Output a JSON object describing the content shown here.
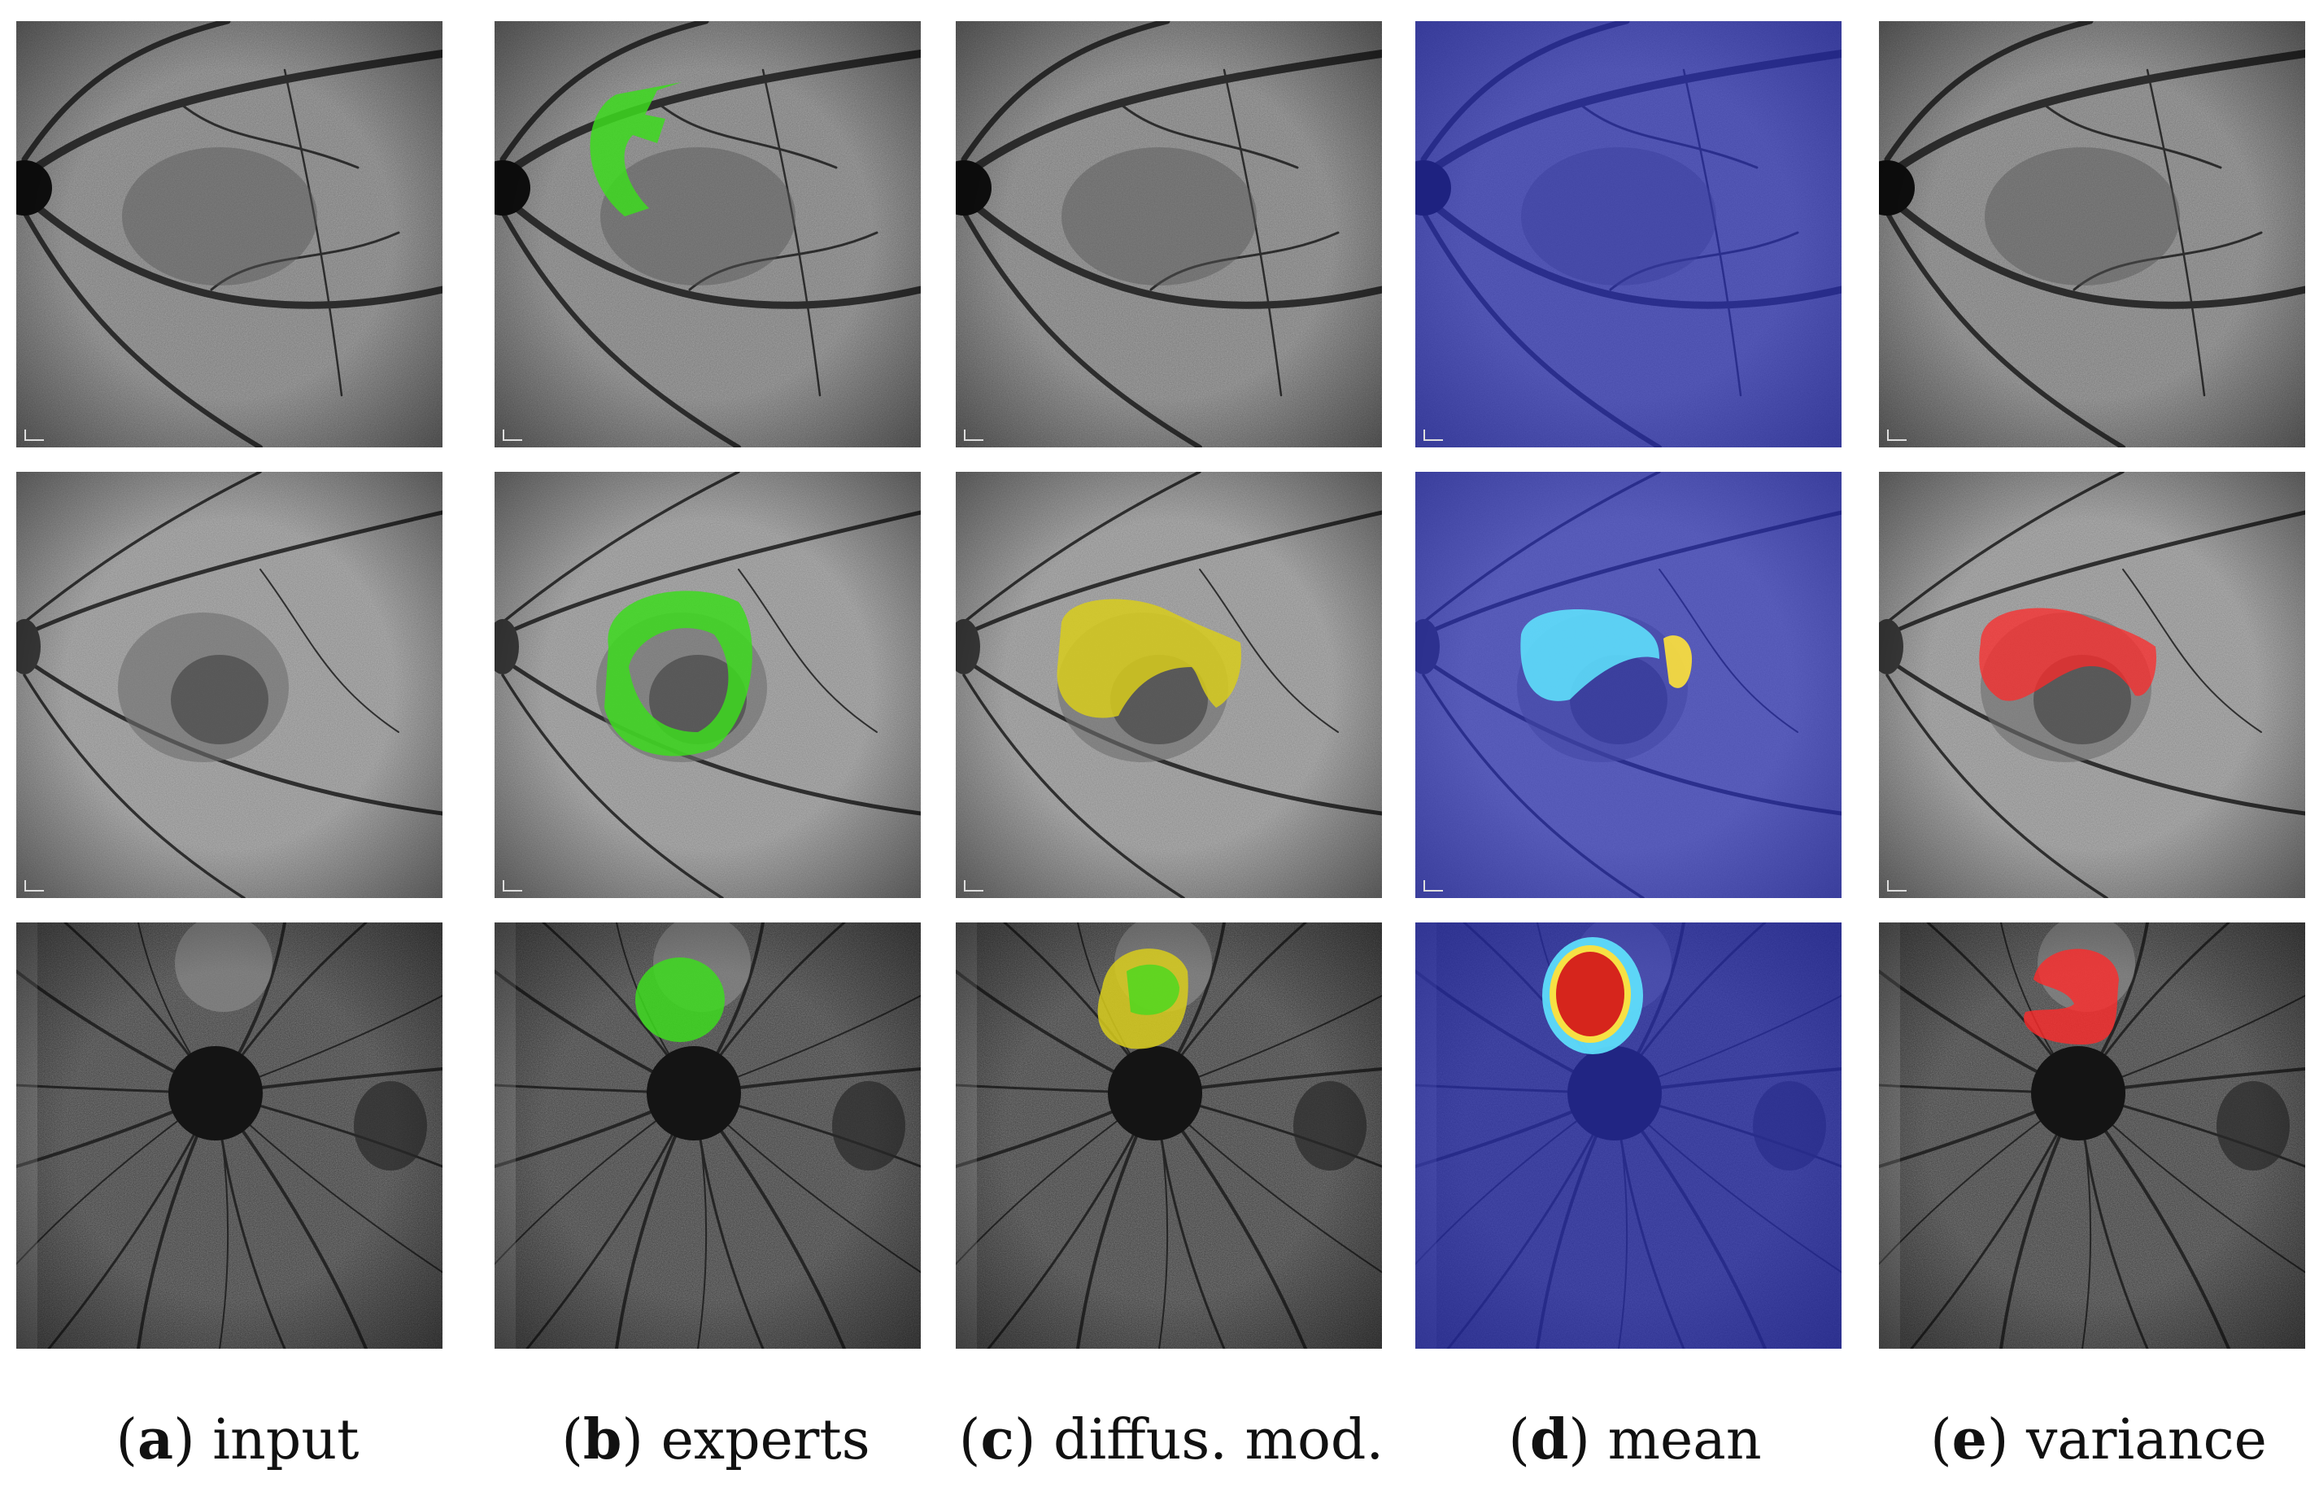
{
  "columns": [
    {
      "letter": "a",
      "label": "input"
    },
    {
      "letter": "b",
      "label": "experts"
    },
    {
      "letter": "c",
      "label": "diffus. mod."
    },
    {
      "letter": "d",
      "label": "mean"
    },
    {
      "letter": "e",
      "label": "variance"
    }
  ],
  "rows": 3,
  "colors": {
    "expert_mask": "#3ddb1f",
    "diffusion_mask": "#d8cc1c",
    "variance_mask": "#ff2a2a",
    "mean_background": "#2a31c8",
    "mean_high": "#d41a1a",
    "mean_mid": "#5fe6ff",
    "mean_yellow": "#ffe23a"
  }
}
